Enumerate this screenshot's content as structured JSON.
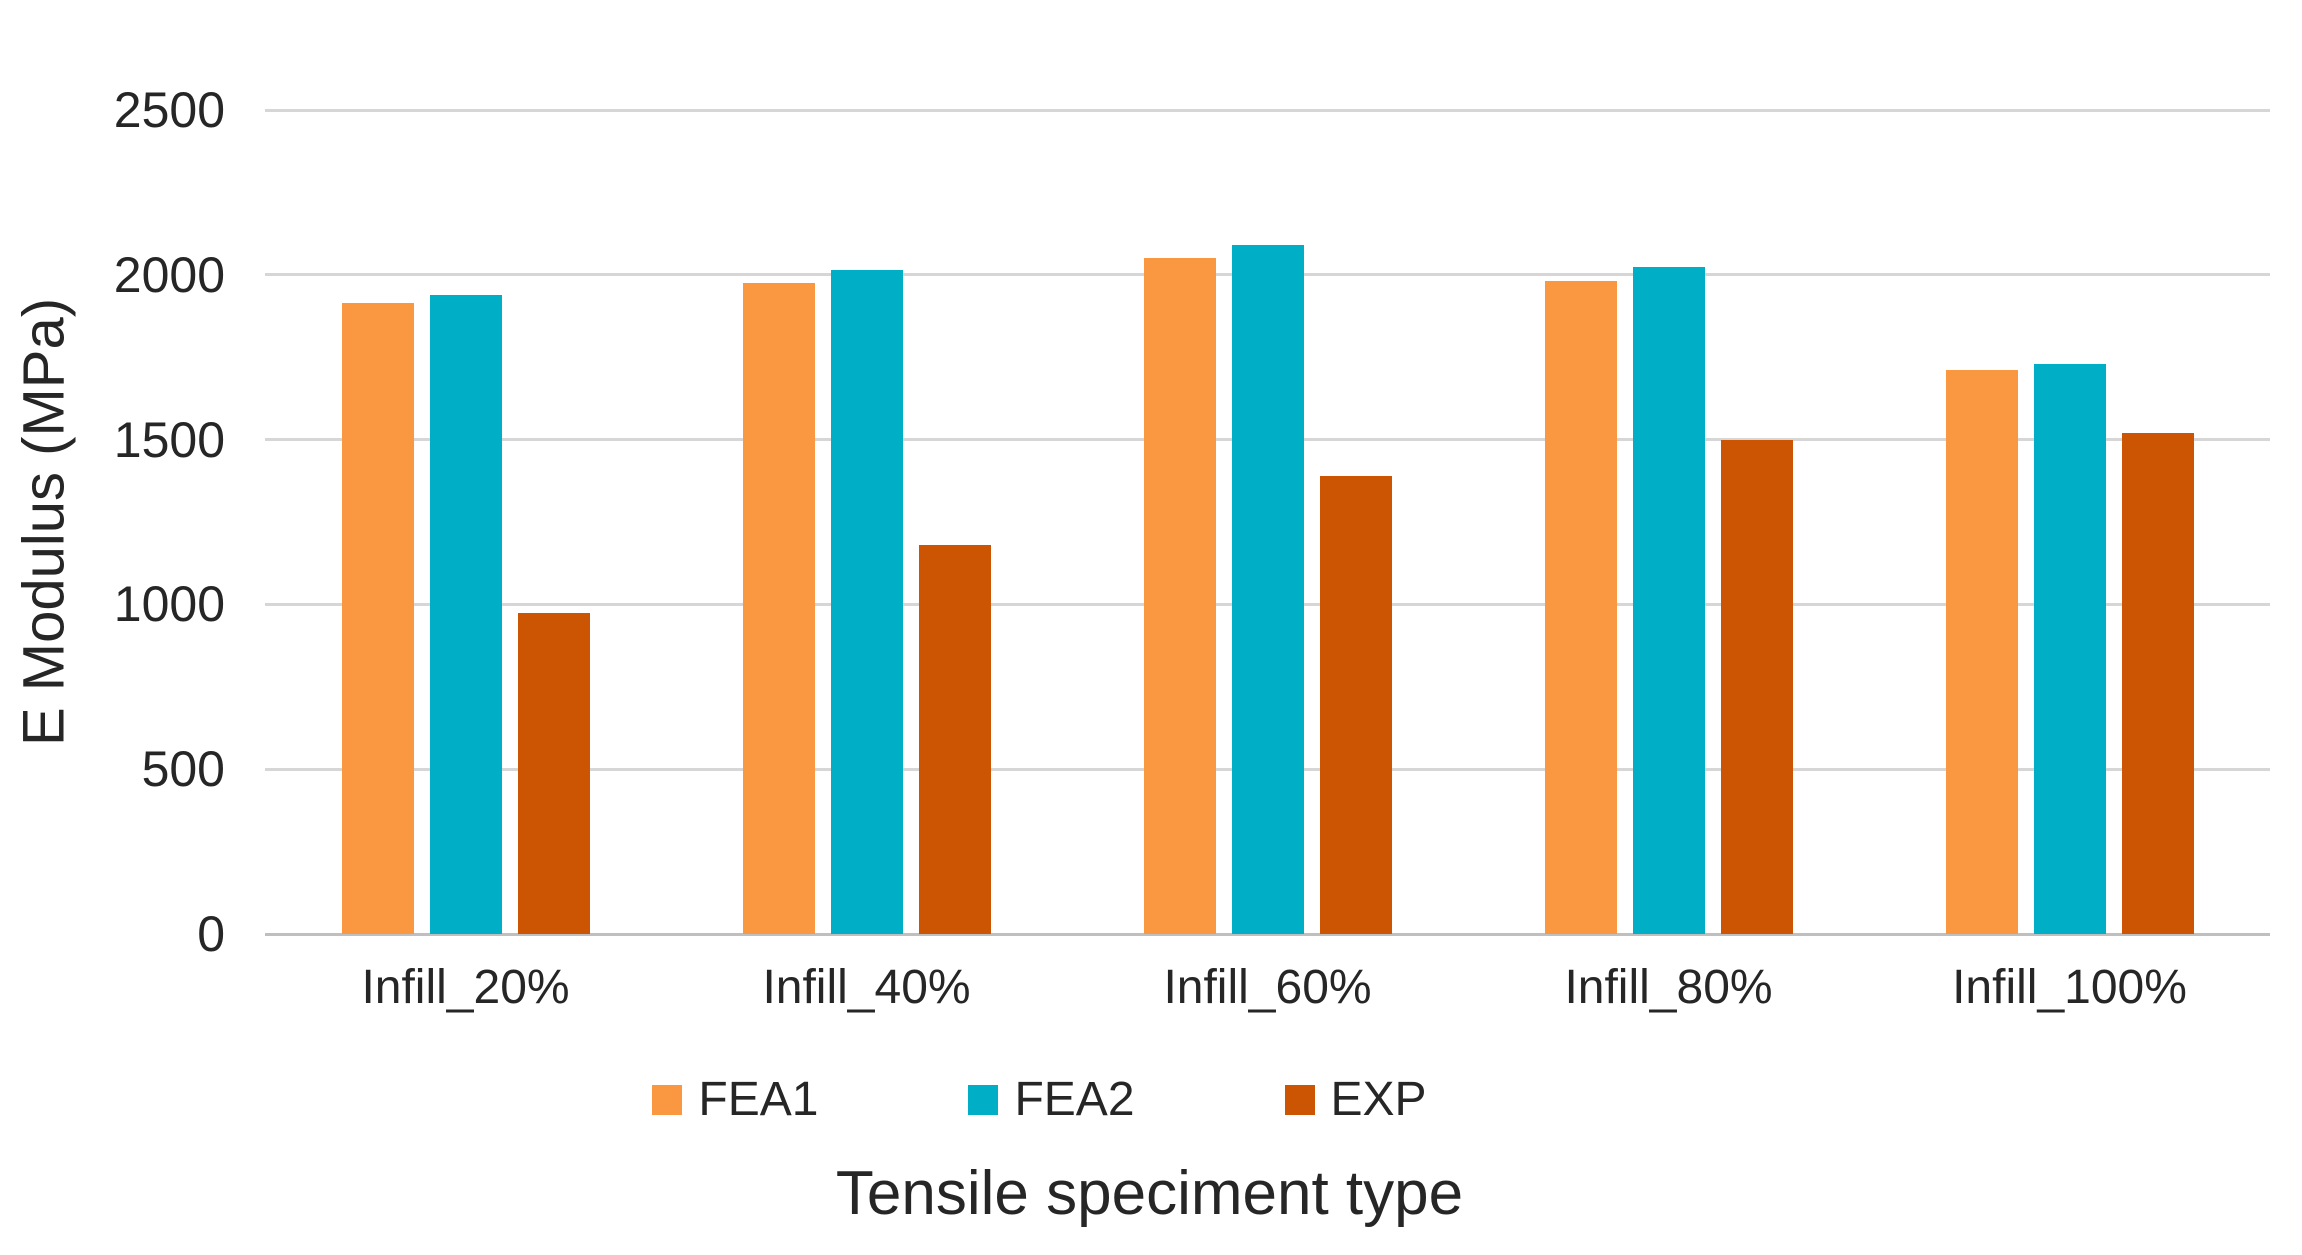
{
  "chart_data": {
    "type": "bar",
    "title": "",
    "categories": [
      "Infill_20%",
      "Infill_40%",
      "Infill_60%",
      "Infill_80%",
      "Infill_100%"
    ],
    "series": [
      {
        "name": "FEA1",
        "color": "#FA9842",
        "values": [
          1915,
          1975,
          2050,
          1980,
          1710
        ]
      },
      {
        "name": "FEA2",
        "color": "#00AEC6",
        "values": [
          1940,
          2015,
          2090,
          2025,
          1730
        ]
      },
      {
        "name": "EXP",
        "color": "#CB5502",
        "values": [
          975,
          1180,
          1390,
          1500,
          1520
        ]
      }
    ],
    "xlabel": "Tensile speciment type",
    "ylabel": "E Modulus (MPa)",
    "ylim": [
      0,
      2500
    ],
    "ytick_step": 500,
    "yticks": [
      "0",
      "500",
      "1000",
      "1500",
      "2000",
      "2500"
    ],
    "grid": true,
    "legend_position": "bottom"
  },
  "colors": {
    "background": "#FFFFFF",
    "gridline": "#D6D6D6",
    "axis_line": "#BFBFBF",
    "text": "#262626"
  }
}
